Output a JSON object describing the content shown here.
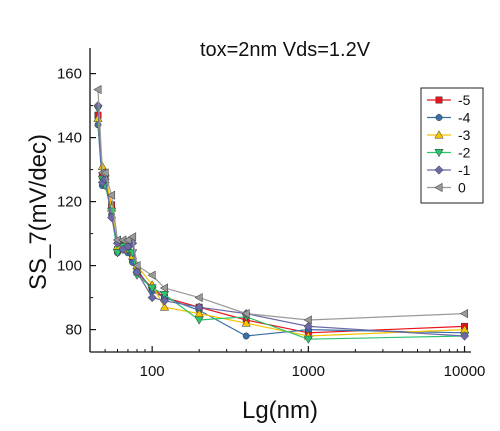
{
  "chart_data": {
    "type": "line",
    "title": "tox=2nm  Vds=1.2V",
    "xlabel": "Lg(nm)",
    "ylabel": "SS_7(mV/dec)",
    "xscale": "log",
    "xlim": [
      40,
      11000
    ],
    "ylim": [
      73,
      168
    ],
    "xticks": [
      100,
      1000,
      10000
    ],
    "xtick_labels": [
      "100",
      "1000",
      "10000"
    ],
    "yticks": [
      80,
      100,
      120,
      140,
      160
    ],
    "ytick_labels": [
      "80",
      "100",
      "120",
      "140",
      "160"
    ],
    "grid": false,
    "legend_position": "top-right",
    "x": [
      45,
      48,
      50,
      55,
      60,
      65,
      70,
      75,
      80,
      100,
      120,
      200,
      400,
      1000,
      10000
    ],
    "series": [
      {
        "name": "-5",
        "color": "#e8131b",
        "marker": "square",
        "values": [
          147,
          128,
          127,
          119,
          105,
          107,
          106,
          102,
          98,
          93,
          90,
          87,
          83,
          79,
          81
        ]
      },
      {
        "name": "-4",
        "color": "#3a6fa8",
        "marker": "circle",
        "values": [
          144,
          125,
          127,
          116,
          104,
          105,
          104,
          101,
          99,
          92,
          90,
          86,
          78,
          80,
          79
        ]
      },
      {
        "name": "-3",
        "color": "#f5c400",
        "marker": "triangle-up",
        "values": [
          146,
          131,
          129,
          118,
          106,
          106,
          105,
          103,
          100,
          94,
          87,
          85,
          82,
          78,
          80
        ]
      },
      {
        "name": "-2",
        "color": "#2ec46e",
        "marker": "triangle-down",
        "values": [
          149,
          127,
          125,
          117,
          104,
          106,
          105,
          104,
          97,
          93,
          91,
          83,
          84,
          77,
          78
        ]
      },
      {
        "name": "-1",
        "color": "#6a6aa8",
        "marker": "diamond",
        "values": [
          150,
          126,
          127,
          115,
          107,
          105,
          106,
          107,
          98,
          90,
          89,
          87,
          85,
          81,
          78
        ]
      },
      {
        "name": "0",
        "color": "#9a9a9a",
        "marker": "triangle-left",
        "values": [
          155,
          129,
          129,
          122,
          108,
          108,
          108,
          109,
          100,
          97,
          93,
          90,
          85,
          83,
          85
        ]
      }
    ]
  }
}
